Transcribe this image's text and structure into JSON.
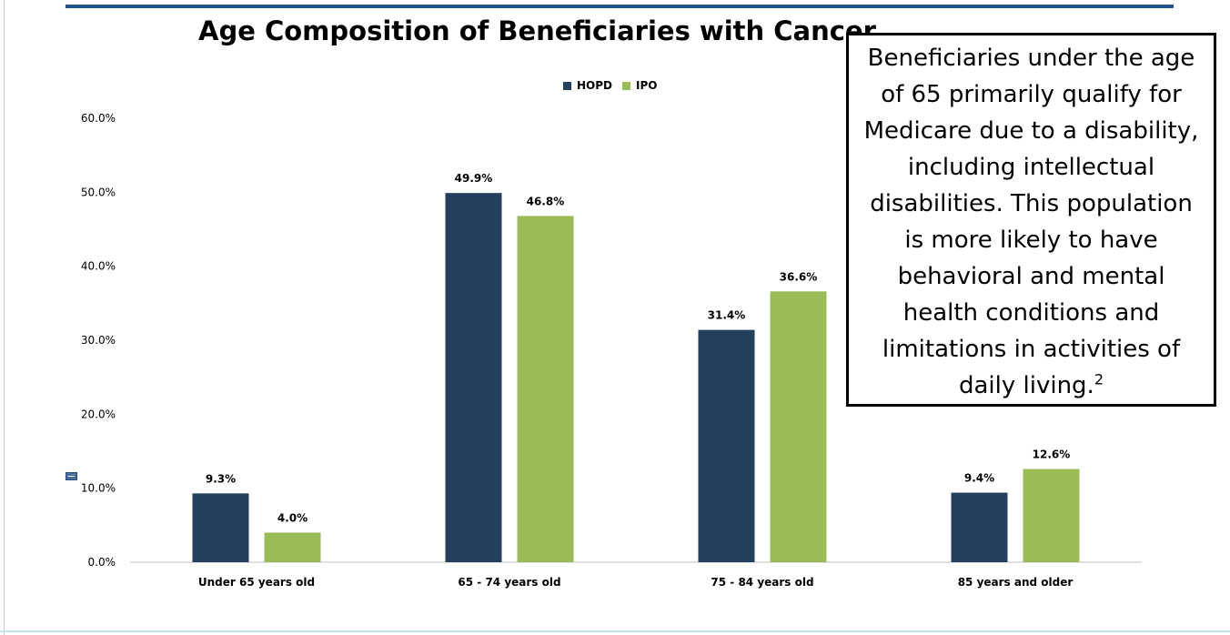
{
  "colors": {
    "hopd": "#253f5e",
    "ipo": "#9bbb59",
    "axis": "#bfbfbf"
  },
  "chart_data": {
    "type": "bar",
    "title": "Age Composition of Beneficiaries with Cancer",
    "categories": [
      "Under 65 years old",
      "65 - 74 years old",
      "75 - 84 years old",
      "85 years and older"
    ],
    "series": [
      {
        "name": "HOPD",
        "values": [
          9.3,
          49.9,
          31.4,
          9.4
        ],
        "labels": [
          "9.3%",
          "49.9%",
          "31.4%",
          "9.4%"
        ]
      },
      {
        "name": "IPO",
        "values": [
          4.0,
          46.8,
          36.6,
          12.6
        ],
        "labels": [
          "4.0%",
          "46.8%",
          "36.6%",
          "12.6%"
        ]
      }
    ],
    "ylim": [
      0,
      60
    ],
    "yticks": [
      "0.0%",
      "10.0%",
      "20.0%",
      "30.0%",
      "40.0%",
      "50.0%",
      "60.0%"
    ],
    "legend_position": "top-center",
    "grid": false,
    "xlabel": "",
    "ylabel": ""
  },
  "callout": {
    "text": "Beneficiaries under the age of 65 primarily qualify for Medicare due to a disability, including intellectual disabilities. This population is more likely to have behavioral and mental health conditions and limitations in activities of daily living.",
    "footnote": "2"
  }
}
